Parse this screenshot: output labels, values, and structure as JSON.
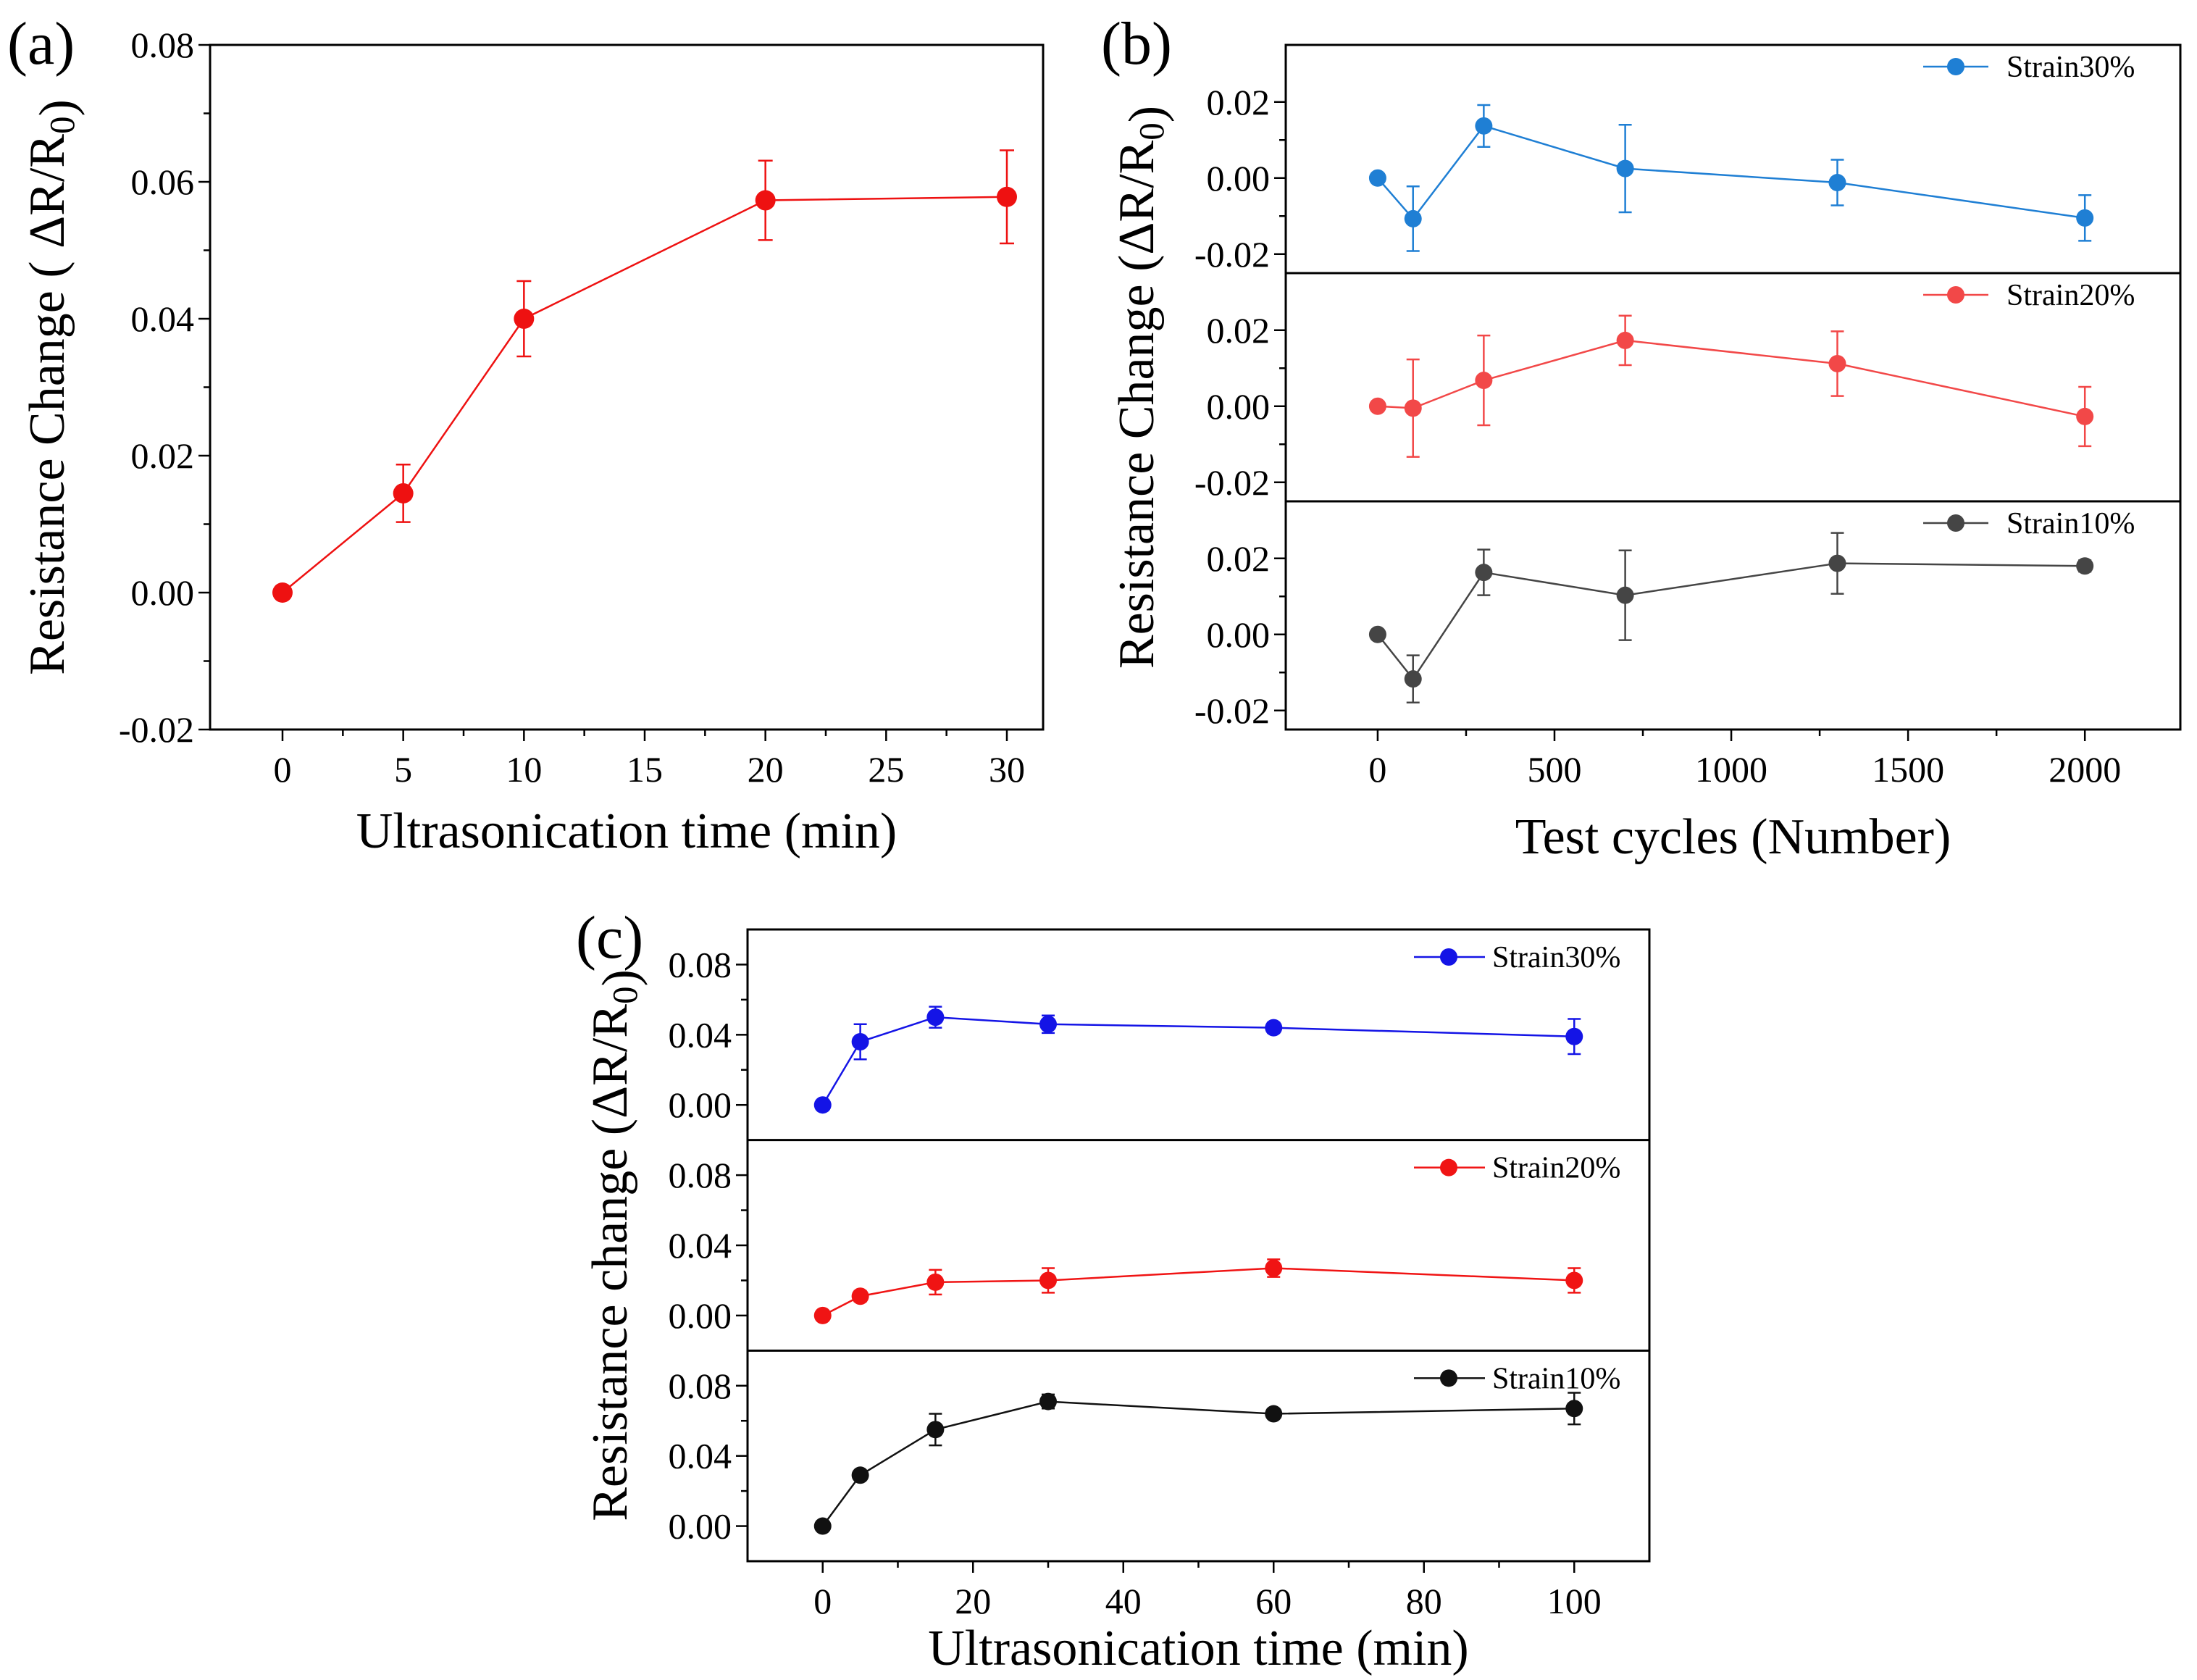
{
  "figure": {
    "panels": [
      "(a)",
      "(b)",
      "(c)"
    ]
  },
  "chart_data": [
    {
      "id": "a",
      "type": "line",
      "panel_label": "(a)",
      "xlabel": "Ultrasonication time (min)",
      "ylabel": "Resistance Change ( ΔR/R0)",
      "xlim": [
        -3,
        31.5
      ],
      "ylim": [
        -0.02,
        0.08
      ],
      "xticks": [
        0,
        5,
        10,
        15,
        20,
        25,
        30
      ],
      "yticks": [
        -0.02,
        0.0,
        0.02,
        0.04,
        0.06,
        0.08
      ],
      "series": [
        {
          "name": "",
          "color": "#ee1111",
          "x": [
            0,
            5,
            10,
            20,
            30
          ],
          "y": [
            0.0,
            0.0145,
            0.04,
            0.0573,
            0.0578
          ],
          "err": [
            0.0,
            0.0042,
            0.0055,
            0.0058,
            0.0068
          ]
        }
      ]
    },
    {
      "id": "b",
      "type": "line",
      "panel_label": "(b)",
      "xlabel": "Test cycles (Number)",
      "ylabel": "Resistance Change (ΔR/R0)",
      "xlim": [
        -260,
        2270
      ],
      "xticks": [
        0,
        500,
        1000,
        1500,
        2000
      ],
      "stacked": true,
      "subplots": [
        {
          "ylim": [
            -0.025,
            0.035
          ],
          "yticks": [
            -0.02,
            0.0,
            0.02
          ],
          "series": [
            {
              "name": "Strain30%",
              "color": "#1f7fd4",
              "x": [
                0,
                100,
                300,
                700,
                1300,
                2000
              ],
              "y": [
                0.0,
                -0.0107,
                0.0137,
                0.0025,
                -0.0012,
                -0.0105
              ],
              "err": [
                0.0,
                0.0085,
                0.0055,
                0.0115,
                0.006,
                0.006
              ]
            }
          ]
        },
        {
          "ylim": [
            -0.025,
            0.035
          ],
          "yticks": [
            -0.02,
            0.0,
            0.02
          ],
          "series": [
            {
              "name": "Strain20%",
              "color": "#f24848",
              "x": [
                0,
                100,
                300,
                700,
                1300,
                2000
              ],
              "y": [
                0.0,
                -0.0005,
                0.0068,
                0.0173,
                0.0112,
                -0.0027
              ],
              "err": [
                0.0,
                0.0128,
                0.0118,
                0.0065,
                0.0085,
                0.0078
              ]
            }
          ]
        },
        {
          "ylim": [
            -0.025,
            0.035
          ],
          "yticks": [
            -0.02,
            0.0,
            0.02
          ],
          "series": [
            {
              "name": "Strain10%",
              "color": "#454545",
              "x": [
                0,
                100,
                300,
                700,
                1300,
                2000
              ],
              "y": [
                0.0,
                -0.0117,
                0.0163,
                0.0103,
                0.0187,
                0.018
              ],
              "err": [
                0.0,
                0.0062,
                0.006,
                0.0118,
                0.008,
                0.0015
              ]
            }
          ]
        }
      ]
    },
    {
      "id": "c",
      "type": "line",
      "panel_label": "(c)",
      "xlabel": "Ultrasonication time (min)",
      "ylabel": "Resistance change (ΔR/R0)",
      "xlim": [
        -10,
        110
      ],
      "xticks": [
        0,
        20,
        40,
        60,
        80,
        100
      ],
      "stacked": true,
      "subplots": [
        {
          "ylim": [
            -0.02,
            0.1
          ],
          "yticks": [
            0.0,
            0.04,
            0.08
          ],
          "series": [
            {
              "name": "Strain30%",
              "color": "#1414e6",
              "x": [
                0,
                5,
                15,
                30,
                60,
                100
              ],
              "y": [
                0.0,
                0.036,
                0.05,
                0.046,
                0.044,
                0.039
              ],
              "err": [
                0.0,
                0.01,
                0.006,
                0.005,
                0.003,
                0.01
              ]
            }
          ]
        },
        {
          "ylim": [
            -0.02,
            0.1
          ],
          "yticks": [
            0.0,
            0.04,
            0.08
          ],
          "series": [
            {
              "name": "Strain20%",
              "color": "#f01414",
              "x": [
                0,
                5,
                15,
                30,
                60,
                100
              ],
              "y": [
                0.0,
                0.011,
                0.019,
                0.02,
                0.027,
                0.02
              ],
              "err": [
                0.0,
                0.003,
                0.007,
                0.007,
                0.005,
                0.007
              ]
            }
          ]
        },
        {
          "ylim": [
            -0.02,
            0.1
          ],
          "yticks": [
            0.0,
            0.04,
            0.08
          ],
          "series": [
            {
              "name": "Strain10%",
              "color": "#111111",
              "x": [
                0,
                5,
                15,
                30,
                60,
                100
              ],
              "y": [
                0.0,
                0.029,
                0.055,
                0.071,
                0.064,
                0.067
              ],
              "err": [
                0.0,
                0.002,
                0.009,
                0.004,
                0.002,
                0.009
              ]
            }
          ]
        }
      ]
    }
  ]
}
